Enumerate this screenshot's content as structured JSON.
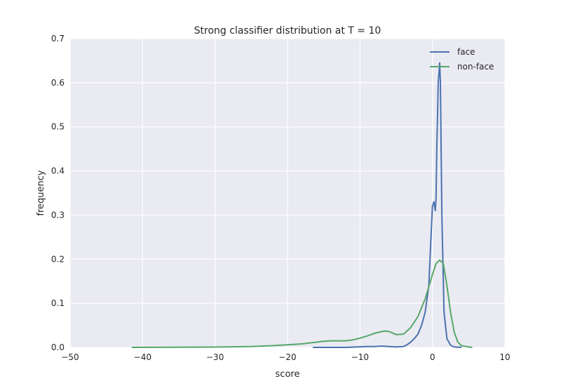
{
  "chart_data": {
    "type": "line",
    "title": "Strong classifier distribution at T = 10",
    "xlabel": "score",
    "ylabel": "frequency",
    "xlim": [
      -50,
      10
    ],
    "ylim": [
      0,
      0.7
    ],
    "xticks": [
      -50,
      -40,
      -30,
      -20,
      -10,
      0,
      10
    ],
    "xtick_labels": [
      "−50",
      "−40",
      "−30",
      "−20",
      "−10",
      "0",
      "10"
    ],
    "yticks": [
      0,
      0.1,
      0.2,
      0.3,
      0.4,
      0.5,
      0.6,
      0.7
    ],
    "ytick_labels": [
      "0.0",
      "0.1",
      "0.2",
      "0.3",
      "0.4",
      "0.5",
      "0.6",
      "0.7"
    ],
    "grid": true,
    "legend": "top-right",
    "background": "#EAEAF2",
    "series": [
      {
        "name": "face",
        "color": "#4C72B0",
        "x": [
          -16.5,
          -12,
          -9,
          -8,
          -7,
          -6,
          -5,
          -4,
          -3.5,
          -3,
          -2.5,
          -2,
          -1.5,
          -1,
          -0.5,
          -0.2,
          0,
          0.2,
          0.4,
          0.5,
          0.6,
          0.8,
          1.0,
          1.1,
          1.3,
          1.6,
          2.0,
          2.5,
          3.0,
          4.0
        ],
        "y": [
          0.0,
          0.0,
          0.002,
          0.002,
          0.003,
          0.002,
          0.001,
          0.002,
          0.006,
          0.012,
          0.02,
          0.03,
          0.05,
          0.08,
          0.14,
          0.25,
          0.32,
          0.33,
          0.31,
          0.34,
          0.45,
          0.6,
          0.645,
          0.6,
          0.3,
          0.08,
          0.02,
          0.005,
          0.001,
          0.0
        ]
      },
      {
        "name": "non-face",
        "color": "#55A868",
        "x": [
          -41.5,
          -35,
          -30,
          -25,
          -22,
          -20,
          -18,
          -16,
          -15,
          -14,
          -13,
          -12,
          -11,
          -10,
          -9,
          -8,
          -7,
          -6.5,
          -6,
          -5,
          -4,
          -3,
          -2,
          -1,
          0,
          0.5,
          1.0,
          1.5,
          2.0,
          2.5,
          3.0,
          3.5,
          4.0,
          5.0,
          5.5
        ],
        "y": [
          0.0,
          0.0005,
          0.0008,
          0.002,
          0.004,
          0.006,
          0.008,
          0.012,
          0.014,
          0.015,
          0.015,
          0.015,
          0.017,
          0.021,
          0.026,
          0.032,
          0.036,
          0.037,
          0.036,
          0.029,
          0.03,
          0.045,
          0.07,
          0.11,
          0.165,
          0.19,
          0.198,
          0.19,
          0.14,
          0.08,
          0.035,
          0.012,
          0.004,
          0.001,
          0.0
        ]
      }
    ]
  }
}
